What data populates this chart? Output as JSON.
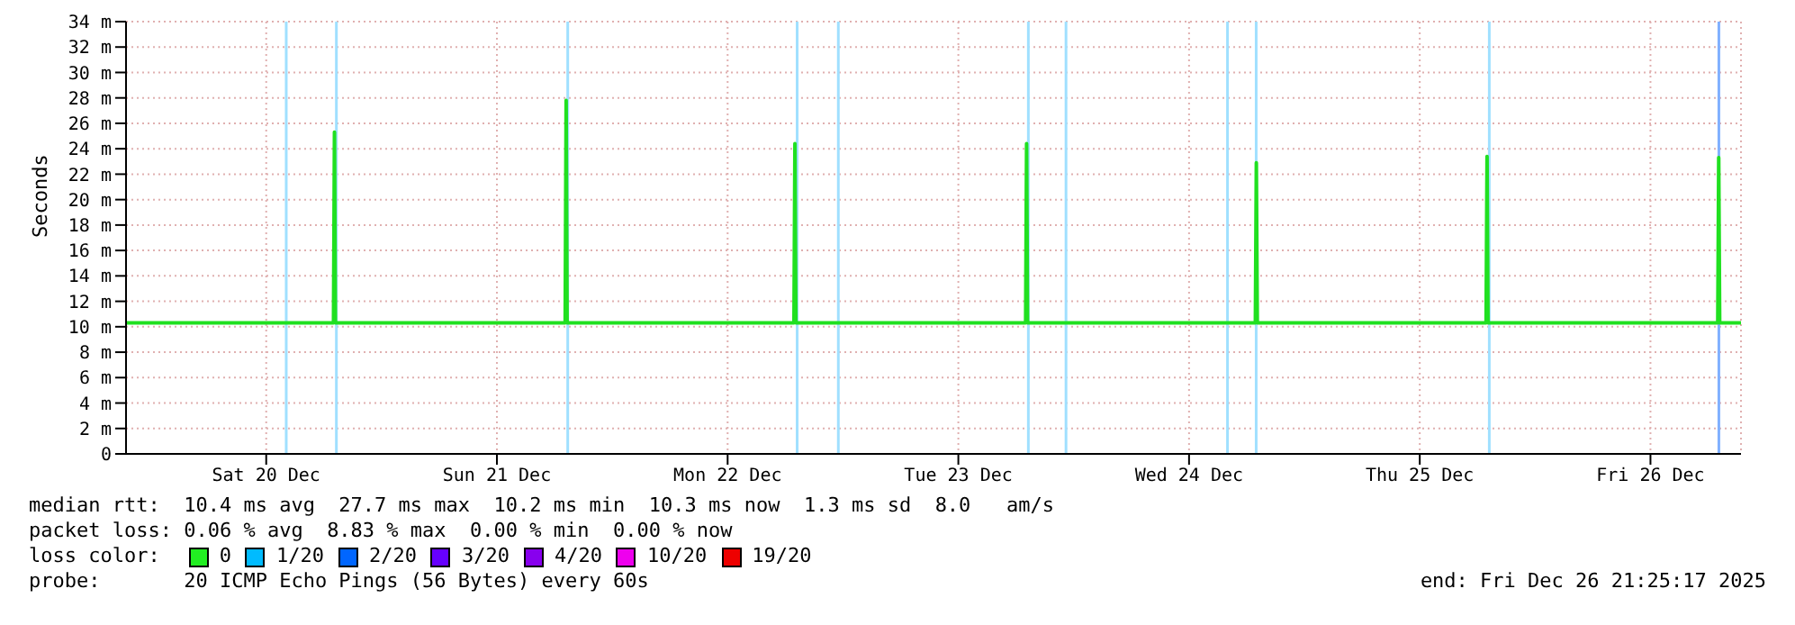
{
  "chart_data": {
    "type": "line",
    "ylabel": "Seconds",
    "x": [
      "2025-12-19T21:25",
      "2025-12-20T19:00",
      "2025-12-20T19:06",
      "2025-12-20T19:12",
      "2025-12-21T19:06",
      "2025-12-21T19:12",
      "2025-12-21T19:18",
      "2025-12-22T18:54",
      "2025-12-22T19:00",
      "2025-12-22T19:06",
      "2025-12-23T19:00",
      "2025-12-23T19:06",
      "2025-12-23T19:12",
      "2025-12-24T18:54",
      "2025-12-24T19:00",
      "2025-12-24T19:06",
      "2025-12-25T18:54",
      "2025-12-25T19:00",
      "2025-12-25T19:06",
      "2025-12-26T19:00",
      "2025-12-26T19:06",
      "2025-12-26T19:12",
      "2025-12-26T21:25"
    ],
    "series": [
      {
        "color": "#20e020",
        "values": [
          10.3,
          10.3,
          25.3,
          10.3,
          10.3,
          27.8,
          10.3,
          10.3,
          24.4,
          10.3,
          10.3,
          24.4,
          10.3,
          10.3,
          22.9,
          10.3,
          10.3,
          23.4,
          10.3,
          10.3,
          23.3,
          10.3,
          10.3
        ]
      }
    ],
    "xlim": [
      "2025-12-19T21:25",
      "2025-12-26T21:25"
    ],
    "xticks": [
      {
        "value": "2025-12-20T12:00",
        "label": "Sat 20 Dec"
      },
      {
        "value": "2025-12-21T12:00",
        "label": "Sun 21 Dec"
      },
      {
        "value": "2025-12-22T12:00",
        "label": "Mon 22 Dec"
      },
      {
        "value": "2025-12-23T12:00",
        "label": "Tue 23 Dec"
      },
      {
        "value": "2025-12-24T12:00",
        "label": "Wed 24 Dec"
      },
      {
        "value": "2025-12-25T12:00",
        "label": "Thu 25 Dec"
      },
      {
        "value": "2025-12-26T12:00",
        "label": "Fri 26 Dec"
      }
    ],
    "ylim": [
      0,
      34
    ],
    "yticks": [
      0,
      {
        "value": 2,
        "label": "2 m"
      },
      {
        "value": 4,
        "label": "4 m"
      },
      {
        "value": 6,
        "label": "6 m"
      },
      {
        "value": 8,
        "label": "8 m"
      },
      {
        "value": 10,
        "label": "10 m"
      },
      {
        "value": 12,
        "label": "12 m"
      },
      {
        "value": 14,
        "label": "14 m"
      },
      {
        "value": 16,
        "label": "16 m"
      },
      {
        "value": 18,
        "label": "18 m"
      },
      {
        "value": 20,
        "label": "20 m"
      },
      {
        "value": 22,
        "label": "22 m"
      },
      {
        "value": 24,
        "label": "24 m"
      },
      {
        "value": 26,
        "label": "26 m"
      },
      {
        "value": 28,
        "label": "28 m"
      },
      {
        "value": 30,
        "label": "30 m"
      },
      {
        "value": 32,
        "label": "32 m"
      },
      {
        "value": 34,
        "label": "34 m"
      }
    ],
    "grid": true,
    "marker": "none",
    "line_style": "solid",
    "ref_lines": [
      {
        "axis": "x",
        "value": "2025-12-20T14:05",
        "color": "#a0e0ff"
      },
      {
        "axis": "x",
        "value": "2025-12-20T19:18",
        "color": "#a0e0ff"
      },
      {
        "axis": "x",
        "value": "2025-12-21T19:22",
        "color": "#a0e0ff"
      },
      {
        "axis": "x",
        "value": "2025-12-22T19:14",
        "color": "#a0e0ff"
      },
      {
        "axis": "x",
        "value": "2025-12-22T23:31",
        "color": "#a0e0ff"
      },
      {
        "axis": "x",
        "value": "2025-12-23T19:17",
        "color": "#a0e0ff"
      },
      {
        "axis": "x",
        "value": "2025-12-23T23:12",
        "color": "#a0e0ff"
      },
      {
        "axis": "x",
        "value": "2025-12-24T16:00",
        "color": "#a0e0ff"
      },
      {
        "axis": "x",
        "value": "2025-12-24T18:59",
        "color": "#a0e0ff"
      },
      {
        "axis": "x",
        "value": "2025-12-25T19:14",
        "color": "#a0e0ff"
      },
      {
        "axis": "x",
        "value": "2025-12-26T19:07",
        "color": "#80b0ff"
      }
    ],
    "annotations": [
      "median rtt:  10.4 ms avg  27.7 ms max  10.2 ms min  10.3 ms now  1.3 ms sd  8.0   am/s",
      "packet loss: 0.06 % avg  8.83 % max  0.00 % min  0.00 % now",
      "loss color:",
      "0",
      "1/20",
      "2/20",
      "3/20",
      "4/20",
      "10/20",
      "19/20",
      "probe:       20 ICMP Echo Pings (56 Bytes) every 60s",
      "end: Fri Dec 26 21:25:17 2025"
    ]
  }
}
